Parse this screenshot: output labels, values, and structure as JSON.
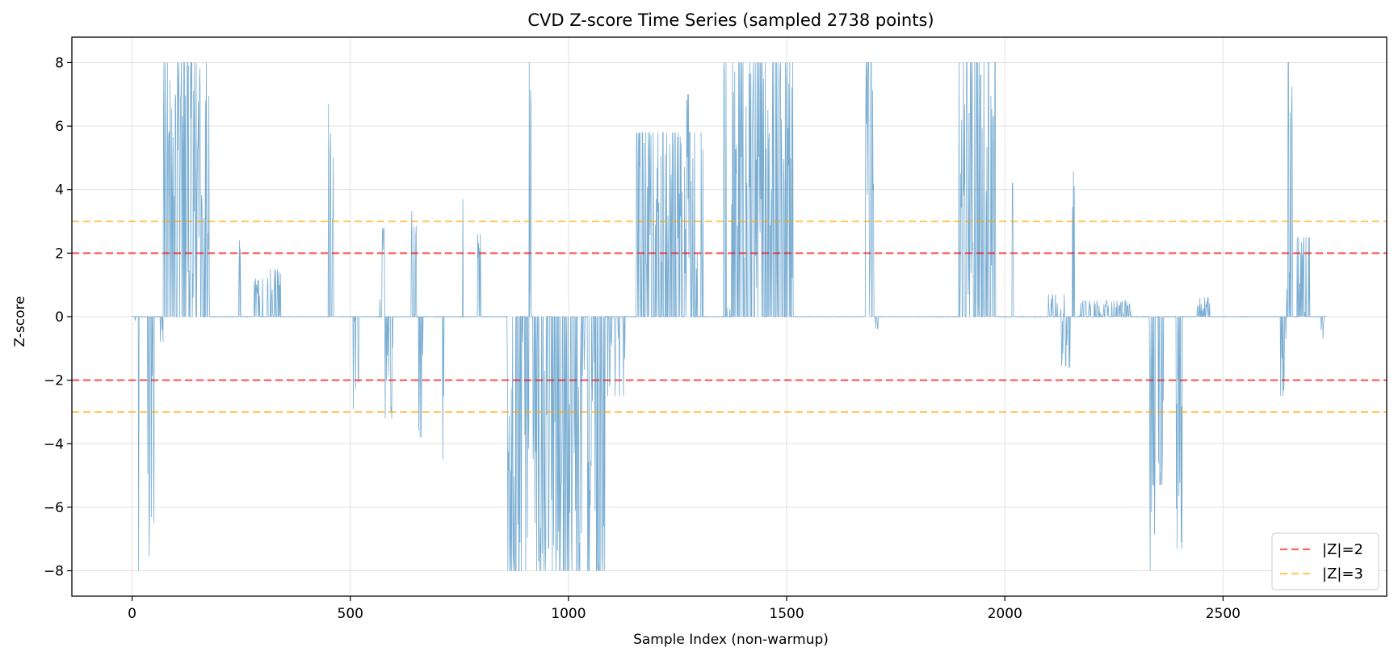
{
  "chart_data": {
    "type": "line",
    "title": "CVD Z-score Time Series (sampled 2738 points)",
    "xlabel": "Sample Index (non-warmup)",
    "ylabel": "Z-score",
    "xlim": [
      -138,
      2875
    ],
    "ylim": [
      -8.8,
      8.8
    ],
    "xticks": [
      0,
      500,
      1000,
      1500,
      2000,
      2500
    ],
    "yticks": [
      -8,
      -6,
      -4,
      -2,
      0,
      2,
      4,
      6,
      8
    ],
    "grid": true,
    "legend_position": "lower-right",
    "n_points": 2738,
    "series": [
      {
        "name": "Z-score",
        "color": "#1f77b4",
        "bursts": [
          [
            2,
            8,
            -0.3,
            0.2
          ],
          [
            8,
            60,
            -8.0,
            0.25
          ],
          [
            62,
            72,
            -0.8,
            0.2
          ],
          [
            72,
            178,
            8.0,
            0.7
          ],
          [
            245,
            250,
            2.4,
            0.6
          ],
          [
            280,
            300,
            1.2,
            0.5
          ],
          [
            310,
            345,
            1.5,
            0.4
          ],
          [
            447,
            462,
            6.7,
            0.4
          ],
          [
            502,
            520,
            -2.9,
            0.4
          ],
          [
            568,
            580,
            2.8,
            0.5
          ],
          [
            580,
            600,
            -3.2,
            0.4
          ],
          [
            640,
            655,
            3.8,
            0.4
          ],
          [
            655,
            668,
            -3.8,
            0.4
          ],
          [
            712,
            718,
            -4.5,
            0.6
          ],
          [
            755,
            770,
            4.6,
            0.4
          ],
          [
            790,
            800,
            2.6,
            0.4
          ],
          [
            860,
            870,
            4.0,
            0.4
          ],
          [
            860,
            1085,
            -8.0,
            0.6
          ],
          [
            910,
            915,
            8.0,
            0.5
          ],
          [
            1085,
            1130,
            -2.5,
            0.35
          ],
          [
            1155,
            1310,
            5.8,
            0.55
          ],
          [
            1270,
            1285,
            7.0,
            0.6
          ],
          [
            1355,
            1520,
            8.0,
            0.45
          ],
          [
            1680,
            1700,
            8.0,
            0.7
          ],
          [
            1700,
            1712,
            -0.4,
            0.4
          ],
          [
            1895,
            1980,
            8.0,
            0.65
          ],
          [
            2015,
            2022,
            4.2,
            0.5
          ],
          [
            2100,
            2140,
            0.7,
            0.3
          ],
          [
            2155,
            2160,
            5.6,
            0.5
          ],
          [
            2130,
            2150,
            -1.6,
            0.4
          ],
          [
            2170,
            2290,
            0.5,
            0.45
          ],
          [
            2330,
            2345,
            -8.0,
            0.5
          ],
          [
            2350,
            2370,
            -5.3,
            0.4
          ],
          [
            2390,
            2410,
            -7.3,
            0.4
          ],
          [
            2440,
            2470,
            0.6,
            0.4
          ],
          [
            2630,
            2645,
            -2.5,
            0.4
          ],
          [
            2645,
            2660,
            8.0,
            0.5
          ],
          [
            2670,
            2700,
            2.5,
            0.4
          ],
          [
            2725,
            2732,
            -0.7,
            0.4
          ]
        ]
      }
    ],
    "hlines": [
      {
        "y": 2,
        "color": "#ff0000",
        "opacity": 0.6,
        "label": "|Z|=2"
      },
      {
        "y": -2,
        "color": "#ff0000",
        "opacity": 0.6,
        "label": ""
      },
      {
        "y": 3,
        "color": "#ffa500",
        "opacity": 0.6,
        "label": "|Z|=3"
      },
      {
        "y": -3,
        "color": "#ffa500",
        "opacity": 0.6,
        "label": ""
      }
    ],
    "legend": [
      {
        "label": "|Z|=2",
        "color": "#ff0000"
      },
      {
        "label": "|Z|=3",
        "color": "#ffa500"
      }
    ]
  }
}
